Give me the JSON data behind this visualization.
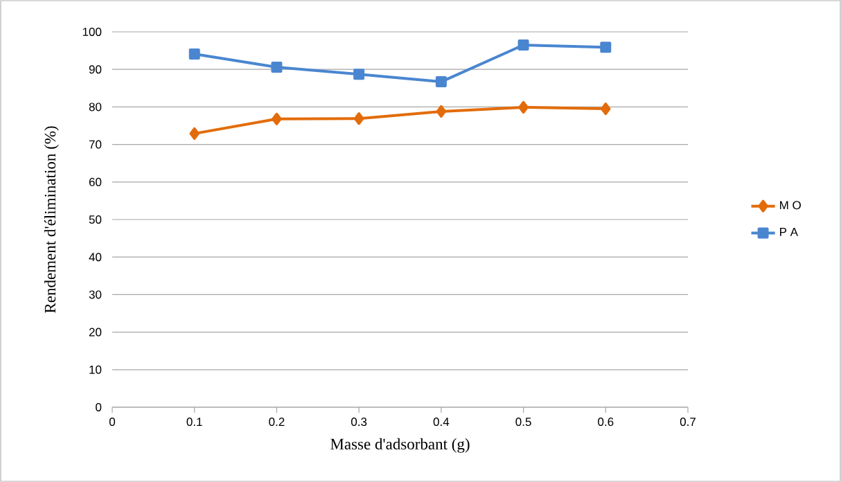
{
  "chart_data": {
    "type": "line",
    "xlabel": "Masse d'adsorbant (g)",
    "ylabel": "Rendement d'élimination (%)",
    "x": [
      0.1,
      0.2,
      0.3,
      0.4,
      0.5,
      0.6
    ],
    "series": [
      {
        "name": "M O",
        "color": "#e36c0a",
        "marker": "diamond",
        "values": [
          72.9,
          76.8,
          76.9,
          78.8,
          79.9,
          79.5
        ]
      },
      {
        "name": "P A",
        "color": "#4a86d0",
        "marker": "square",
        "values": [
          94.1,
          90.6,
          88.7,
          86.7,
          96.5,
          95.9
        ]
      }
    ],
    "xlim": [
      0,
      0.7
    ],
    "xticks": [
      0,
      0.1,
      0.2,
      0.3,
      0.4,
      0.5,
      0.6,
      0.7
    ],
    "ylim": [
      0,
      100
    ],
    "yticks": [
      0,
      10,
      20,
      30,
      40,
      50,
      60,
      70,
      80,
      90,
      100
    ],
    "grid": "y",
    "legend": "right",
    "line_style": "solid"
  }
}
